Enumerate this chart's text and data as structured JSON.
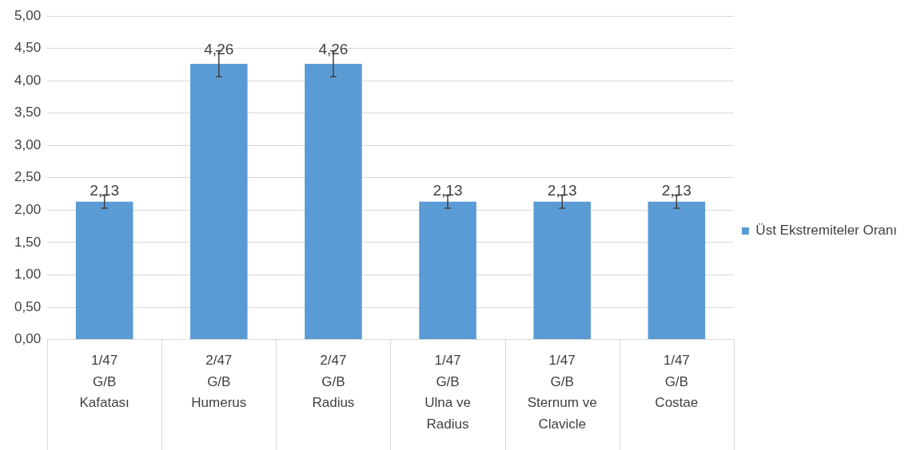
{
  "chart_data": {
    "type": "bar",
    "categories": [
      "1/47\nG/B\nKafatası",
      "2/47\nG/B\nHumerus",
      "2/47\nG/B\nRadius",
      "1/47\nG/B\nUlna ve Radius",
      "1/47\nG/B\nSternum ve Clavicle",
      "1/47\nG/B\nCostae"
    ],
    "series": [
      {
        "name": "Üst Ekstremiteler Oranı",
        "color": "#5b9bd5",
        "values": [
          2.13,
          4.26,
          4.26,
          2.13,
          2.13,
          2.13
        ],
        "errors": [
          0.1,
          0.2,
          0.2,
          0.1,
          0.1,
          0.1
        ],
        "value_labels": [
          "2,13",
          "4,26",
          "4,26",
          "2,13",
          "2,13",
          "2,13"
        ]
      }
    ],
    "ylim": [
      0,
      5
    ],
    "yticks": [
      {
        "value": 0,
        "label": "0,00"
      },
      {
        "value": 0.5,
        "label": "0,50"
      },
      {
        "value": 1,
        "label": "1,00"
      },
      {
        "value": 1.5,
        "label": "1,50"
      },
      {
        "value": 2,
        "label": "2,00"
      },
      {
        "value": 2.5,
        "label": "2,50"
      },
      {
        "value": 3,
        "label": "3,00"
      },
      {
        "value": 3.5,
        "label": "3,50"
      },
      {
        "value": 4,
        "label": "4,00"
      },
      {
        "value": 4.5,
        "label": "4,50"
      },
      {
        "value": 5,
        "label": "5,00"
      }
    ],
    "grid": "y",
    "legend": "right"
  }
}
